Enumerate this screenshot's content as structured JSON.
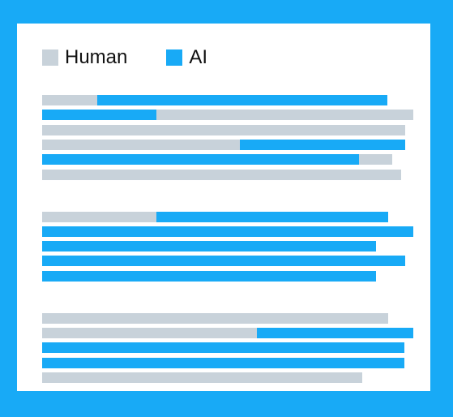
{
  "colors": {
    "background": "#18aaf6",
    "panel": "#ffffff",
    "human": "#c8d2da",
    "ai": "#18aaf6"
  },
  "legend": [
    {
      "label": "Human",
      "color": "#c8d2da"
    },
    {
      "label": "AI",
      "color": "#18aaf6"
    }
  ],
  "paragraphs": [
    {
      "lines": [
        {
          "segments": [
            {
              "source": "human",
              "fraction": 0.148
            },
            {
              "source": "ai",
              "fraction": 0.782
            }
          ]
        },
        {
          "segments": [
            {
              "source": "ai",
              "fraction": 0.307
            },
            {
              "source": "human",
              "fraction": 0.693
            }
          ]
        },
        {
          "segments": [
            {
              "source": "human",
              "fraction": 0.978
            }
          ]
        },
        {
          "segments": [
            {
              "source": "human",
              "fraction": 0.532
            },
            {
              "source": "ai",
              "fraction": 0.446
            }
          ]
        },
        {
          "segments": [
            {
              "source": "ai",
              "fraction": 0.853
            },
            {
              "source": "human",
              "fraction": 0.091
            }
          ]
        },
        {
          "segments": [
            {
              "source": "human",
              "fraction": 0.967
            }
          ]
        }
      ]
    },
    {
      "lines": [
        {
          "segments": [
            {
              "source": "human",
              "fraction": 0.307
            },
            {
              "source": "ai",
              "fraction": 0.625
            }
          ]
        },
        {
          "segments": [
            {
              "source": "ai",
              "fraction": 1.0
            }
          ]
        },
        {
          "segments": [
            {
              "source": "ai",
              "fraction": 0.899
            }
          ]
        },
        {
          "segments": [
            {
              "source": "ai",
              "fraction": 0.978
            }
          ]
        },
        {
          "segments": [
            {
              "source": "ai",
              "fraction": 0.899
            }
          ]
        }
      ]
    },
    {
      "lines": [
        {
          "segments": [
            {
              "source": "human",
              "fraction": 0.932
            }
          ]
        },
        {
          "segments": [
            {
              "source": "human",
              "fraction": 0.579
            },
            {
              "source": "ai",
              "fraction": 0.421
            }
          ]
        },
        {
          "segments": [
            {
              "source": "ai",
              "fraction": 0.975
            }
          ]
        },
        {
          "segments": [
            {
              "source": "ai",
              "fraction": 0.975
            }
          ]
        },
        {
          "segments": [
            {
              "source": "human",
              "fraction": 0.862
            }
          ]
        }
      ]
    }
  ]
}
